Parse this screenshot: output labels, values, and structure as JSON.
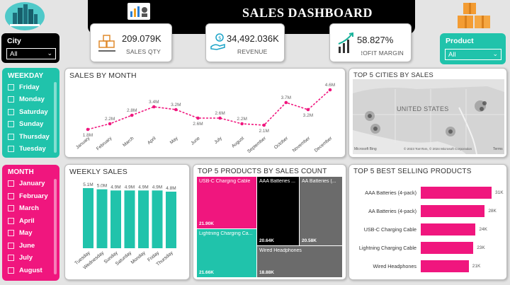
{
  "header": {
    "title": "SALES DASHBOARD"
  },
  "kpis": [
    {
      "value": "209.079K",
      "label": "SALES QTY"
    },
    {
      "value": "34,492.036K",
      "label": "REVENUE"
    },
    {
      "value": "58.827%",
      "label": "PROFIT MARGIN"
    }
  ],
  "city_filter": {
    "title": "City",
    "value": "All"
  },
  "product_filter": {
    "title": "Product",
    "value": "All"
  },
  "weekday_slicer": {
    "title": "WEEKDAY",
    "items": [
      "Friday",
      "Monday",
      "Saturday",
      "Sunday",
      "Thursday",
      "Tuesday"
    ]
  },
  "month_slicer": {
    "title": "MONTH",
    "items": [
      "January",
      "February",
      "March",
      "April",
      "May",
      "June",
      "July",
      "August"
    ]
  },
  "sales_by_month": {
    "title": "SALES BY MONTH"
  },
  "top_cities": {
    "title": "TOP 5 CITIES BY SALES",
    "map_label": "UNITED STATES",
    "attribution": "© 2023 TomTom, © 2024 Microsoft Corporation",
    "terms": "Terms",
    "bing": "Microsoft Bing"
  },
  "weekly_sales": {
    "title": "WEEKLY SALES"
  },
  "top_products_count": {
    "title": "TOP 5 PRODUCTS BY SALES COUNT",
    "cells": [
      {
        "name": "USB-C Charging Cable",
        "value": "21.90K"
      },
      {
        "name": "Lightning Charging Ca...",
        "value": "21.66K"
      },
      {
        "name": "AAA Batteries ...",
        "value": "20.64K"
      },
      {
        "name": "AA Batteries (...",
        "value": "20.58K"
      },
      {
        "name": "Wired Headphones",
        "value": "18.88K"
      }
    ]
  },
  "best_selling": {
    "title": "TOP 5 BEST SELLING PRODUCTS"
  },
  "colors": {
    "accent_pink": "#f0167e",
    "accent_teal": "#20c3ab"
  },
  "chart_data": [
    {
      "type": "line",
      "categories": [
        "January",
        "February",
        "March",
        "April",
        "May",
        "June",
        "July",
        "August",
        "September",
        "October",
        "November",
        "December"
      ],
      "series": [
        {
          "values": [
            1.8,
            2.2,
            2.8,
            3.4,
            3.2,
            2.6,
            2.6,
            2.2,
            2.1,
            3.7,
            3.2,
            4.6
          ]
        }
      ],
      "data_labels": [
        "1.8M",
        "2.2M",
        "2.8M",
        "3.4M",
        "3.2M",
        "2.6M",
        "2.6M",
        "2.2M",
        "2.1M",
        "3.7M",
        "3.2M",
        "4.6M"
      ],
      "title": "SALES BY MONTH",
      "ylim": [
        1.5,
        5
      ]
    },
    {
      "type": "bar",
      "categories": [
        "Tuesday",
        "Wednesday",
        "Sunday",
        "Saturday",
        "Monday",
        "Friday",
        "Thursday"
      ],
      "values": [
        5.1,
        5.0,
        4.9,
        4.9,
        4.9,
        4.9,
        4.8
      ],
      "data_labels": [
        "5.1M",
        "5.0M",
        "4.9M",
        "4.9M",
        "4.9M",
        "4.9M",
        "4.8M"
      ],
      "title": "WEEKLY SALES",
      "ylim": [
        0,
        5.1
      ]
    },
    {
      "type": "bar",
      "orientation": "horizontal",
      "categories": [
        "AAA Batteries (4-pack)",
        "AA Batteries (4-pack)",
        "USB-C Charging Cable",
        "Lightning Charging Cable",
        "Wired Headphones"
      ],
      "values": [
        31,
        28,
        24,
        23,
        21
      ],
      "data_labels": [
        "31K",
        "28K",
        "24K",
        "23K",
        "21K"
      ],
      "title": "TOP 5 BEST SELLING PRODUCTS",
      "xlim": [
        0,
        31
      ]
    }
  ]
}
